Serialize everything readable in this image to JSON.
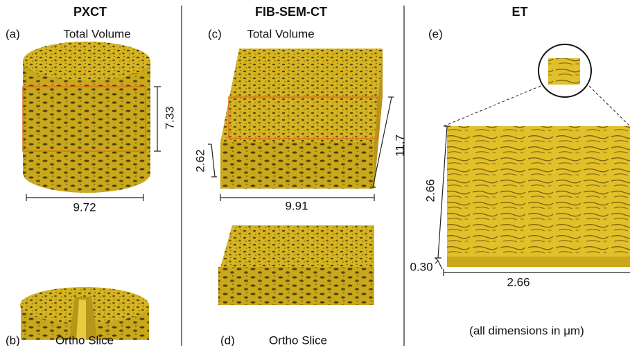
{
  "columns": [
    {
      "title": "PXCT",
      "views": [
        {
          "label": "(a)",
          "caption": "Total Volume",
          "dimensions": [
            "7.33",
            "9.72"
          ]
        },
        {
          "label": "(b)",
          "caption": "Ortho Slice"
        }
      ]
    },
    {
      "title": "FIB-SEM-CT",
      "views": [
        {
          "label": "(c)",
          "caption": "Total Volume",
          "dimensions": [
            "2.62",
            "11.7",
            "9.91"
          ]
        },
        {
          "label": "(d)",
          "caption": "Ortho Slice"
        }
      ]
    },
    {
      "title": "ET",
      "views": [
        {
          "label": "(e)",
          "dimensions": [
            "2.66",
            "2.66",
            "0.30"
          ]
        }
      ]
    }
  ],
  "note": "(all dimensions in μm)"
}
